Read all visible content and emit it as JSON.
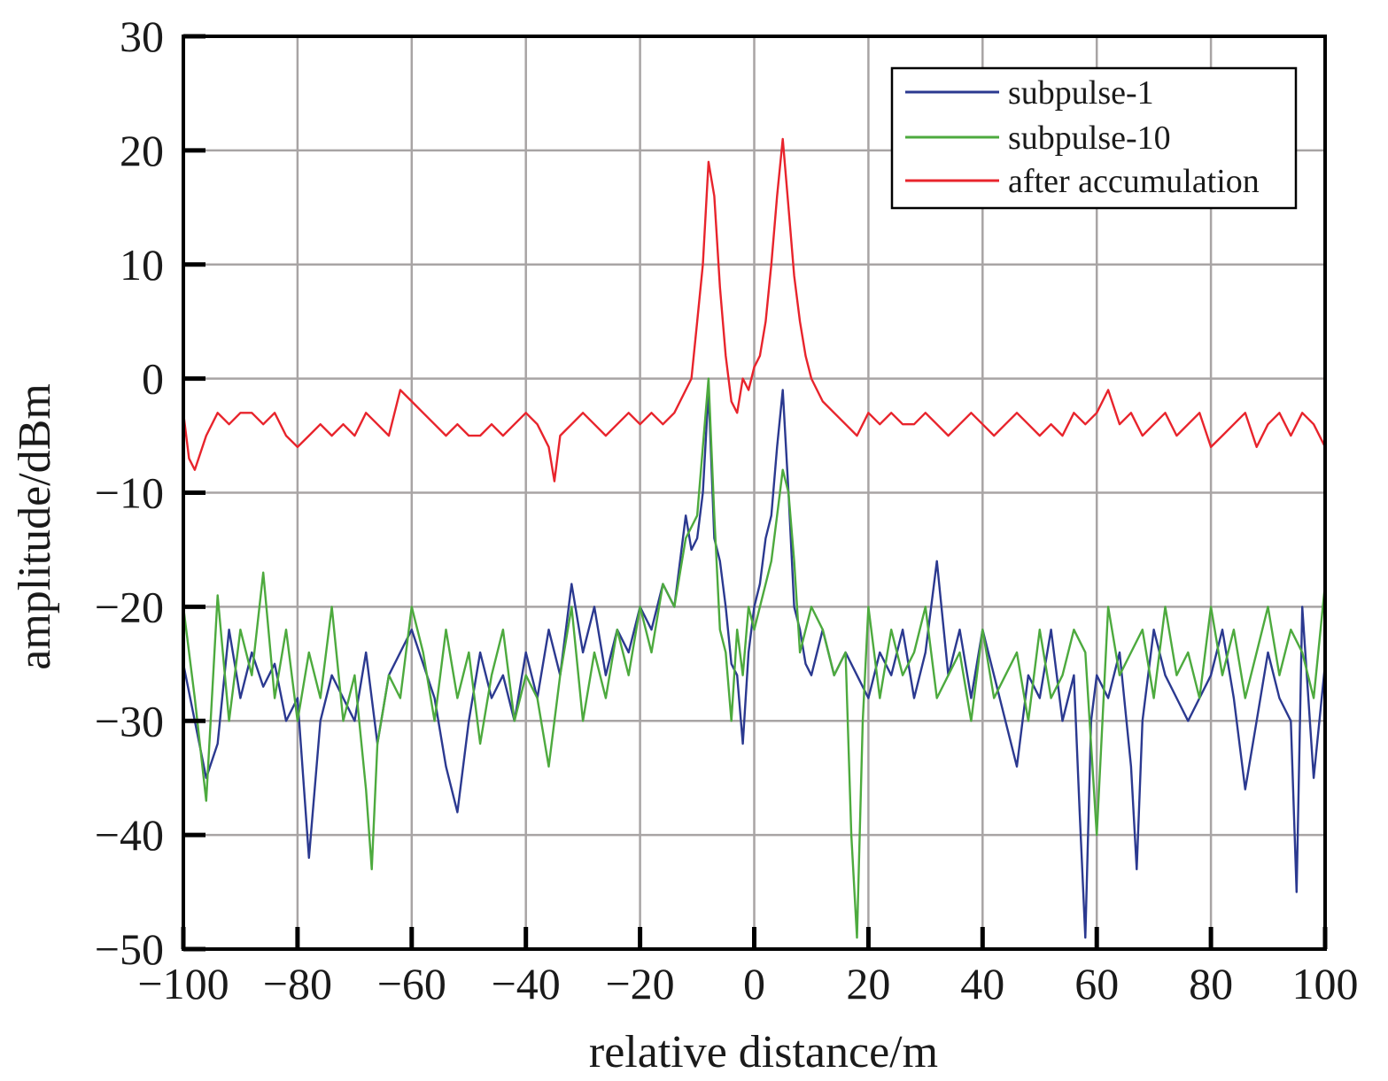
{
  "chart_data": {
    "type": "line",
    "xlabel": "relative distance/m",
    "ylabel": "amplitude/dBm",
    "xlim": [
      -100,
      100
    ],
    "ylim": [
      -50,
      30
    ],
    "xticks": [
      -100,
      -80,
      -60,
      -40,
      -20,
      0,
      20,
      40,
      60,
      80,
      100
    ],
    "yticks": [
      30,
      20,
      10,
      0,
      -10,
      -20,
      -30,
      -40,
      -50
    ],
    "xtick_labels": [
      "−100",
      "−80",
      "−60",
      "−40",
      "−20",
      "0",
      "20",
      "40",
      "60",
      "80",
      "100"
    ],
    "ytick_labels": [
      "30",
      "20",
      "10",
      "0",
      "−10",
      "−20",
      "−30",
      "−40",
      "−50"
    ],
    "grid": true,
    "legend_position": "top-right",
    "series": [
      {
        "name": "subpulse-1",
        "color": "#2b3990",
        "x": [
          -100,
          -98,
          -96,
          -94,
          -92,
          -90,
          -88,
          -86,
          -84,
          -82,
          -80,
          -78,
          -76,
          -74,
          -72,
          -70,
          -68,
          -66,
          -64,
          -62,
          -60,
          -58,
          -56,
          -54,
          -52,
          -50,
          -48,
          -46,
          -44,
          -42,
          -40,
          -38,
          -36,
          -34,
          -32,
          -30,
          -28,
          -26,
          -24,
          -22,
          -20,
          -18,
          -16,
          -14,
          -12,
          -11,
          -10,
          -9,
          -8,
          -7,
          -6,
          -5,
          -4,
          -3,
          -2,
          -1,
          0,
          1,
          2,
          3,
          4,
          5,
          6,
          7,
          8,
          9,
          10,
          12,
          14,
          16,
          18,
          20,
          22,
          24,
          26,
          28,
          30,
          32,
          34,
          36,
          38,
          40,
          42,
          44,
          46,
          48,
          50,
          52,
          54,
          56,
          57,
          58,
          59,
          60,
          62,
          64,
          66,
          67,
          68,
          70,
          72,
          74,
          76,
          78,
          80,
          82,
          84,
          86,
          88,
          90,
          92,
          94,
          95,
          96,
          98,
          100
        ],
        "values": [
          -25,
          -30,
          -35,
          -32,
          -22,
          -28,
          -24,
          -27,
          -25,
          -30,
          -28,
          -42,
          -30,
          -26,
          -28,
          -30,
          -24,
          -32,
          -26,
          -24,
          -22,
          -25,
          -28,
          -34,
          -38,
          -30,
          -24,
          -28,
          -26,
          -30,
          -24,
          -28,
          -22,
          -26,
          -18,
          -24,
          -20,
          -26,
          -22,
          -24,
          -20,
          -22,
          -18,
          -20,
          -12,
          -15,
          -14,
          -10,
          -1,
          -14,
          -16,
          -20,
          -25,
          -26,
          -32,
          -24,
          -20,
          -18,
          -14,
          -12,
          -6,
          -1,
          -10,
          -20,
          -22,
          -25,
          -26,
          -22,
          -26,
          -24,
          -26,
          -28,
          -24,
          -26,
          -22,
          -28,
          -24,
          -16,
          -26,
          -22,
          -28,
          -22,
          -26,
          -30,
          -34,
          -26,
          -28,
          -22,
          -30,
          -26,
          -38,
          -49,
          -30,
          -26,
          -28,
          -24,
          -34,
          -43,
          -30,
          -22,
          -26,
          -28,
          -30,
          -28,
          -26,
          -22,
          -28,
          -36,
          -30,
          -24,
          -28,
          -30,
          -45,
          -20,
          -35,
          -25
        ]
      },
      {
        "name": "subpulse-10",
        "color": "#4daa3e",
        "x": [
          -100,
          -98,
          -96,
          -94,
          -92,
          -90,
          -88,
          -86,
          -84,
          -82,
          -80,
          -78,
          -76,
          -74,
          -72,
          -70,
          -68,
          -67,
          -66,
          -64,
          -62,
          -60,
          -58,
          -56,
          -54,
          -52,
          -50,
          -48,
          -46,
          -44,
          -42,
          -40,
          -38,
          -36,
          -34,
          -32,
          -30,
          -28,
          -26,
          -24,
          -22,
          -20,
          -18,
          -16,
          -14,
          -12,
          -10,
          -9,
          -8,
          -7,
          -6,
          -5,
          -4,
          -3,
          -2,
          -1,
          0,
          1,
          2,
          3,
          4,
          5,
          6,
          7,
          8,
          10,
          12,
          14,
          16,
          17,
          18,
          19,
          20,
          22,
          24,
          26,
          28,
          30,
          32,
          34,
          36,
          38,
          40,
          42,
          44,
          46,
          48,
          50,
          52,
          54,
          56,
          58,
          60,
          62,
          64,
          66,
          68,
          70,
          72,
          74,
          76,
          78,
          80,
          82,
          84,
          86,
          88,
          90,
          92,
          94,
          96,
          98,
          100
        ],
        "values": [
          -20,
          -28,
          -37,
          -19,
          -30,
          -22,
          -26,
          -17,
          -28,
          -22,
          -30,
          -24,
          -28,
          -20,
          -30,
          -26,
          -36,
          -43,
          -32,
          -26,
          -28,
          -20,
          -24,
          -30,
          -22,
          -28,
          -24,
          -32,
          -26,
          -22,
          -30,
          -26,
          -28,
          -34,
          -26,
          -20,
          -30,
          -24,
          -28,
          -22,
          -26,
          -20,
          -24,
          -18,
          -20,
          -14,
          -12,
          -6,
          0,
          -12,
          -22,
          -24,
          -30,
          -22,
          -26,
          -20,
          -22,
          -20,
          -18,
          -16,
          -12,
          -8,
          -10,
          -16,
          -24,
          -20,
          -22,
          -26,
          -24,
          -40,
          -49,
          -30,
          -20,
          -28,
          -22,
          -26,
          -24,
          -20,
          -28,
          -26,
          -24,
          -30,
          -22,
          -28,
          -26,
          -24,
          -30,
          -22,
          -28,
          -26,
          -22,
          -24,
          -40,
          -20,
          -26,
          -24,
          -22,
          -28,
          -20,
          -26,
          -24,
          -28,
          -20,
          -26,
          -22,
          -28,
          -24,
          -20,
          -26,
          -22,
          -24,
          -28,
          -18
        ]
      },
      {
        "name": "after accumulation",
        "color": "#e8242c",
        "x": [
          -100,
          -99,
          -98,
          -96,
          -94,
          -92,
          -90,
          -88,
          -86,
          -84,
          -82,
          -80,
          -78,
          -76,
          -74,
          -72,
          -70,
          -68,
          -66,
          -64,
          -62,
          -60,
          -58,
          -56,
          -54,
          -52,
          -50,
          -48,
          -46,
          -44,
          -42,
          -40,
          -38,
          -36,
          -35,
          -34,
          -32,
          -30,
          -28,
          -26,
          -24,
          -22,
          -20,
          -18,
          -16,
          -14,
          -12,
          -11,
          -10,
          -9,
          -8,
          -7,
          -6,
          -5,
          -4,
          -3,
          -2,
          -1,
          0,
          1,
          2,
          3,
          4,
          5,
          6,
          7,
          8,
          9,
          10,
          11,
          12,
          14,
          16,
          18,
          20,
          22,
          24,
          26,
          28,
          30,
          32,
          34,
          36,
          38,
          40,
          42,
          44,
          46,
          48,
          50,
          52,
          54,
          56,
          58,
          60,
          62,
          64,
          66,
          68,
          70,
          72,
          74,
          76,
          78,
          80,
          82,
          84,
          86,
          88,
          90,
          92,
          94,
          96,
          98,
          100
        ],
        "values": [
          -3,
          -7,
          -8,
          -5,
          -3,
          -4,
          -3,
          -3,
          -4,
          -3,
          -5,
          -6,
          -5,
          -4,
          -5,
          -4,
          -5,
          -3,
          -4,
          -5,
          -1,
          -2,
          -3,
          -4,
          -5,
          -4,
          -5,
          -5,
          -4,
          -5,
          -4,
          -3,
          -4,
          -6,
          -9,
          -5,
          -4,
          -3,
          -4,
          -5,
          -4,
          -3,
          -4,
          -3,
          -4,
          -3,
          -1,
          0,
          5,
          10,
          19,
          16,
          8,
          2,
          -2,
          -3,
          0,
          -1,
          1,
          2,
          5,
          10,
          16,
          21,
          15,
          9,
          5,
          2,
          0,
          -1,
          -2,
          -3,
          -4,
          -5,
          -3,
          -4,
          -3,
          -4,
          -4,
          -3,
          -4,
          -5,
          -4,
          -3,
          -4,
          -5,
          -4,
          -3,
          -4,
          -5,
          -4,
          -5,
          -3,
          -4,
          -3,
          -1,
          -4,
          -3,
          -5,
          -4,
          -3,
          -5,
          -4,
          -3,
          -6,
          -5,
          -4,
          -3,
          -6,
          -4,
          -3,
          -5,
          -3,
          -4,
          -6
        ]
      }
    ]
  }
}
